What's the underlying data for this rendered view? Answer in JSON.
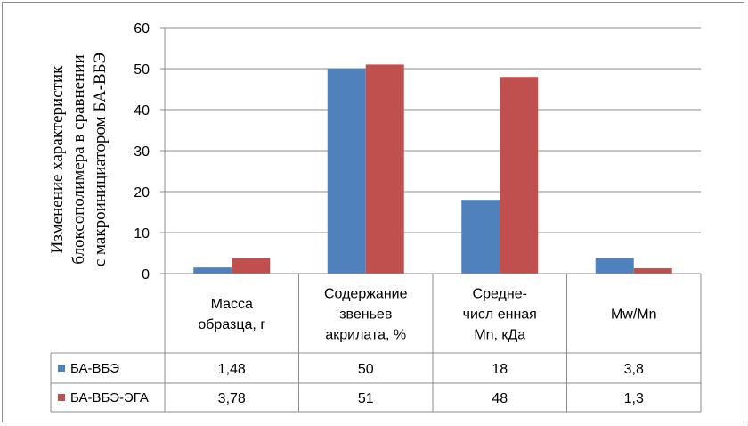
{
  "chart_data": {
    "type": "bar",
    "ylabel_lines": [
      "Изменение характеристик",
      "блоксополимера в сравнении",
      "с макроинициатором БА-ВБЭ"
    ],
    "ylim": [
      0,
      60
    ],
    "yticks": [
      0,
      10,
      20,
      30,
      40,
      50,
      60
    ],
    "grid": true,
    "legend_placement": "data-table",
    "categories": [
      [
        "Масса",
        "образца, г"
      ],
      [
        "Содержание",
        "звеньев",
        "акрилата, %"
      ],
      [
        "Средне-",
        "числ енная",
        "Mn, кДа"
      ],
      [
        "Mw/Mn"
      ]
    ],
    "series": [
      {
        "name": "БА-ВБЭ",
        "color": "#4f81bd",
        "values": [
          1.48,
          50,
          18,
          3.8
        ],
        "labels": [
          "1,48",
          "50",
          "18",
          "3,8"
        ]
      },
      {
        "name": "БА-ВБЭ-ЭГА",
        "color": "#c0504d",
        "values": [
          3.78,
          51,
          48,
          1.3
        ],
        "labels": [
          "3,78",
          "51",
          "48",
          "1,3"
        ]
      }
    ]
  }
}
